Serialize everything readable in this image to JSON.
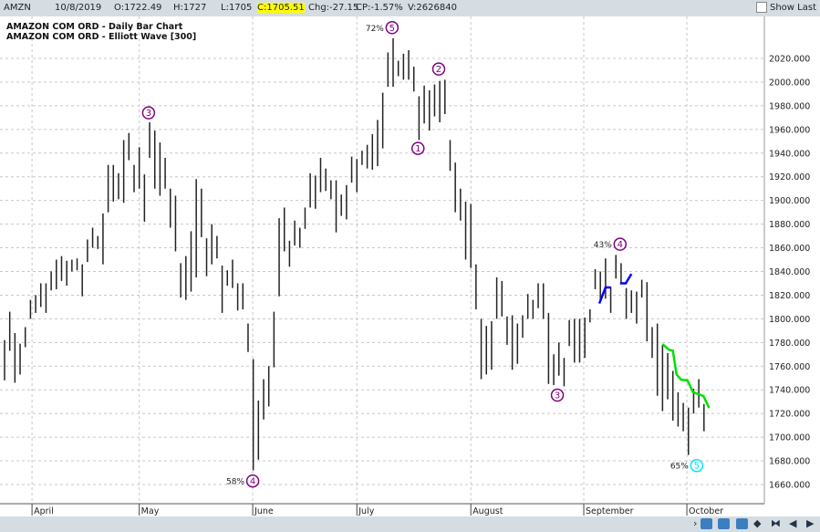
{
  "topbar": {
    "symbol": "AMZN",
    "date": "10/8/2019",
    "open": "O:1722.49",
    "high": "H:1727",
    "low": "L:1705",
    "close": "C:1705.51",
    "change": "Chg:-27.15",
    "change_pct": "CP:-1.57%",
    "volume": "V:2626840",
    "show_last_label": "Show Last",
    "close_highlight": "#ffff00"
  },
  "titles": [
    "AMAZON COM ORD - Daily Bar Chart",
    "AMAZON COM ORD - Elliott Wave [300]"
  ],
  "chart_data": {
    "type": "ohlc-bar",
    "ylim": [
      1650,
      2045
    ],
    "y_ticks": [
      1660,
      1680,
      1700,
      1720,
      1740,
      1760,
      1780,
      1800,
      1820,
      1840,
      1860,
      1880,
      1900,
      1920,
      1940,
      1960,
      1980,
      2000,
      2020
    ],
    "y_tick_labels": [
      "1660.000",
      "1680.000",
      "1700.000",
      "1720.000",
      "1740.000",
      "1760.000",
      "1780.000",
      "1800.000",
      "1820.000",
      "1840.000",
      "1860.000",
      "1880.000",
      "1900.000",
      "1920.000",
      "1940.000",
      "1960.000",
      "1980.000",
      "2000.000",
      "2020.000"
    ],
    "months": [
      {
        "label": "April",
        "bar": 5.3
      },
      {
        "label": "May",
        "bar": 26
      },
      {
        "label": "June",
        "bar": 47.9
      },
      {
        "label": "July",
        "bar": 68
      },
      {
        "label": "August",
        "bar": 90
      },
      {
        "label": "September",
        "bar": 111.8
      },
      {
        "label": "October",
        "bar": 131.7
      }
    ],
    "bars_high_low": [
      [
        1782,
        1748
      ],
      [
        1806,
        1773
      ],
      [
        1788,
        1746
      ],
      [
        1779,
        1753
      ],
      [
        1793,
        1776
      ],
      [
        1816,
        1800
      ],
      [
        1820,
        1805
      ],
      [
        1830,
        1810
      ],
      [
        1830,
        1805
      ],
      [
        1840,
        1824
      ],
      [
        1850,
        1825
      ],
      [
        1853,
        1832
      ],
      [
        1849,
        1828
      ],
      [
        1850,
        1840
      ],
      [
        1851,
        1841
      ],
      [
        1846,
        1819
      ],
      [
        1867,
        1848
      ],
      [
        1877,
        1860
      ],
      [
        1870,
        1859
      ],
      [
        1889,
        1846
      ],
      [
        1930,
        1890
      ],
      [
        1930,
        1899
      ],
      [
        1923,
        1901
      ],
      [
        1951,
        1898
      ],
      [
        1957,
        1934
      ],
      [
        1930,
        1907
      ],
      [
        1945,
        1910
      ],
      [
        1922,
        1882
      ],
      [
        1966,
        1936
      ],
      [
        1959,
        1910
      ],
      [
        1949,
        1904
      ],
      [
        1936,
        1910
      ],
      [
        1910,
        1877
      ],
      [
        1904,
        1857
      ],
      [
        1847,
        1818
      ],
      [
        1853,
        1816
      ],
      [
        1874,
        1823
      ],
      [
        1918,
        1835
      ],
      [
        1910,
        1869
      ],
      [
        1868,
        1836
      ],
      [
        1880,
        1846
      ],
      [
        1870,
        1851
      ],
      [
        1845,
        1805
      ],
      [
        1841,
        1828
      ],
      [
        1850,
        1826
      ],
      [
        1830,
        1807
      ],
      [
        1830,
        1808
      ],
      [
        1796,
        1772
      ],
      [
        1766,
        1672
      ],
      [
        1731,
        1681
      ],
      [
        1749,
        1715
      ],
      [
        1760,
        1726
      ],
      [
        1806,
        1759
      ],
      [
        1885,
        1819
      ],
      [
        1894,
        1857
      ],
      [
        1866,
        1844
      ],
      [
        1883,
        1862
      ],
      [
        1877,
        1860
      ],
      [
        1894,
        1876
      ],
      [
        1923,
        1894
      ],
      [
        1921,
        1893
      ],
      [
        1936,
        1907
      ],
      [
        1927,
        1908
      ],
      [
        1917,
        1901
      ],
      [
        1917,
        1873
      ],
      [
        1905,
        1887
      ],
      [
        1913,
        1884
      ],
      [
        1937,
        1915
      ],
      [
        1935,
        1907
      ],
      [
        1942,
        1930
      ],
      [
        1947,
        1927
      ],
      [
        1956,
        1926
      ],
      [
        1968,
        1929
      ],
      [
        1991,
        1944
      ],
      [
        2025,
        1996
      ],
      [
        2037,
        1996
      ],
      [
        2018,
        2005
      ],
      [
        2024,
        2002
      ],
      [
        2027,
        2002
      ],
      [
        2013,
        1992
      ],
      [
        1988,
        1951
      ],
      [
        1997,
        1965
      ],
      [
        1993,
        1959
      ],
      [
        1998,
        1971
      ],
      [
        2001,
        1966
      ],
      [
        2002,
        1973
      ],
      [
        1951,
        1925
      ],
      [
        1932,
        1890
      ],
      [
        1910,
        1883
      ],
      [
        1899,
        1850
      ],
      [
        1897,
        1843
      ],
      [
        1846,
        1808
      ],
      [
        1800,
        1749
      ],
      [
        1794,
        1753
      ],
      [
        1798,
        1757
      ],
      [
        1835,
        1800
      ],
      [
        1832,
        1802
      ],
      [
        1802,
        1778
      ],
      [
        1803,
        1757
      ],
      [
        1796,
        1762
      ],
      [
        1803,
        1784
      ],
      [
        1821,
        1800
      ],
      [
        1816,
        1800
      ],
      [
        1830,
        1809
      ],
      [
        1830,
        1800
      ],
      [
        1805,
        1745
      ],
      [
        1770,
        1744
      ],
      [
        1780,
        1752
      ],
      [
        1767,
        1743
      ],
      [
        1799,
        1777
      ],
      [
        1800,
        1763
      ],
      [
        1800,
        1763
      ],
      [
        1801,
        1767
      ],
      [
        1808,
        1797
      ],
      [
        1842,
        1825
      ],
      [
        1840,
        1815
      ],
      [
        1851,
        1817
      ],
      [
        1827,
        1805
      ],
      [
        1854,
        1834
      ],
      [
        1847,
        1830
      ],
      [
        1826,
        1800
      ],
      [
        1824,
        1805
      ],
      [
        1823,
        1796
      ],
      [
        1833,
        1818
      ],
      [
        1831,
        1781
      ],
      [
        1793,
        1767
      ],
      [
        1796,
        1735
      ],
      [
        1778,
        1722
      ],
      [
        1771,
        1732
      ],
      [
        1756,
        1714
      ],
      [
        1738,
        1709
      ],
      [
        1729,
        1705
      ],
      [
        1725,
        1685
      ],
      [
        1741,
        1720
      ],
      [
        1749,
        1725
      ],
      [
        1728,
        1705
      ]
    ],
    "wave_labels": [
      {
        "label": "3",
        "bar": 27.8,
        "price": 1974,
        "pct": "",
        "color": "#800080"
      },
      {
        "label": "4",
        "bar": 47.9,
        "price": 1663,
        "pct": "58%",
        "color": "#800080"
      },
      {
        "label": "5",
        "bar": 74.8,
        "price": 2046,
        "pct": "72%",
        "color": "#800080"
      },
      {
        "label": "1",
        "bar": 79.8,
        "price": 1944,
        "pct": "",
        "color": "#800080"
      },
      {
        "label": "2",
        "bar": 83.8,
        "price": 2011,
        "pct": "",
        "color": "#800080"
      },
      {
        "label": "3",
        "bar": 106.7,
        "price": 1735.5,
        "pct": "",
        "color": "#800080"
      },
      {
        "label": "4",
        "bar": 118.8,
        "price": 1863,
        "pct": "43%",
        "color": "#800080"
      },
      {
        "label": "5",
        "bar": 133.6,
        "price": 1676,
        "pct": "65%",
        "color": "#00e5ff"
      }
    ],
    "overlay_lines": [
      {
        "color": "#0000ff",
        "points": [
          [
            114.8,
            1813
          ],
          [
            116,
            1826.5
          ],
          [
            117,
            1826.5
          ]
        ]
      },
      {
        "color": "#0000ff",
        "points": [
          [
            118.8,
            1830
          ],
          [
            119.9,
            1830
          ],
          [
            121,
            1838
          ]
        ]
      },
      {
        "color": "#00e000",
        "points": [
          [
            127,
            1778.7
          ],
          [
            128.2,
            1774
          ],
          [
            129,
            1773
          ],
          [
            129.7,
            1753
          ],
          [
            130.6,
            1748.6
          ],
          [
            131.8,
            1748
          ],
          [
            132.9,
            1738
          ],
          [
            134.9,
            1734.8
          ],
          [
            136,
            1724.7
          ]
        ]
      }
    ],
    "grid": true,
    "bar_color": "#222222"
  }
}
